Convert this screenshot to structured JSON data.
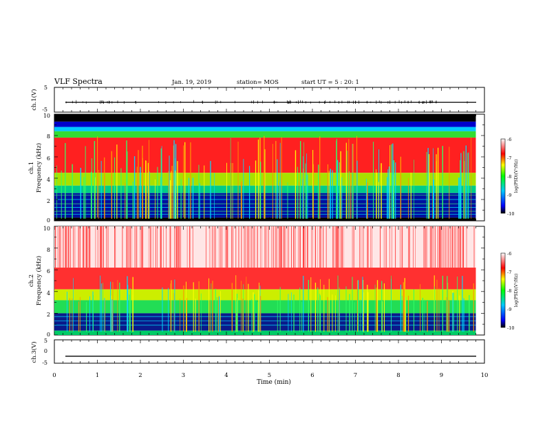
{
  "header": {
    "title": "VLF Spectra",
    "date": "Jan. 19, 2019",
    "station": "station= MOS",
    "start": "start UT =  5 : 20: 1"
  },
  "colors": {
    "spectrum_high": "#ff0000",
    "spectrum_mid": "#00ff00",
    "spectrum_low": "#0000ff",
    "background_band": "#000000"
  },
  "chart_data": [
    {
      "type": "line",
      "name": "ch1-waveform",
      "ylabel": "ch.1(V)",
      "ylim": [
        -5,
        5
      ],
      "yticks": [
        "5",
        "-5"
      ],
      "xlim": [
        0,
        10
      ],
      "level": -1
    },
    {
      "type": "heatmap",
      "name": "ch1-spectrogram",
      "ylabel_channel": "ch.1",
      "ylabel": "Frequency (kHz)",
      "ylim": [
        0,
        10
      ],
      "yticks": [
        "0",
        "2",
        "4",
        "6",
        "8",
        "10"
      ],
      "xlim": [
        0,
        9.8
      ],
      "colorbar": {
        "label": "log(PSD)(V²/Hz)",
        "range": [
          -10,
          -6
        ],
        "ticks": [
          "-6",
          "-7",
          "-8",
          "-9",
          "-10"
        ]
      }
    },
    {
      "type": "heatmap",
      "name": "ch2-spectrogram",
      "ylabel_channel": "ch.2",
      "ylabel": "Frequency (kHz)",
      "ylim": [
        0,
        10
      ],
      "yticks": [
        "0",
        "2",
        "4",
        "6",
        "8",
        "10"
      ],
      "xlim": [
        0,
        9.8
      ],
      "colorbar": {
        "label": "log(PSD)(V²/Hz)",
        "range": [
          -10,
          -6
        ],
        "ticks": [
          "-6",
          "-7",
          "-8",
          "-9",
          "-10"
        ]
      }
    },
    {
      "type": "line",
      "name": "ch3-waveform",
      "ylabel": "ch.3(V)",
      "ylim": [
        -5,
        5
      ],
      "yticks": [
        "5",
        "0",
        "-5"
      ],
      "xlim": [
        0,
        10
      ],
      "level": -2,
      "xlabel": "Time (min)",
      "xticks": [
        "0",
        "1",
        "2",
        "3",
        "4",
        "5",
        "6",
        "7",
        "8",
        "9",
        "10"
      ]
    }
  ]
}
